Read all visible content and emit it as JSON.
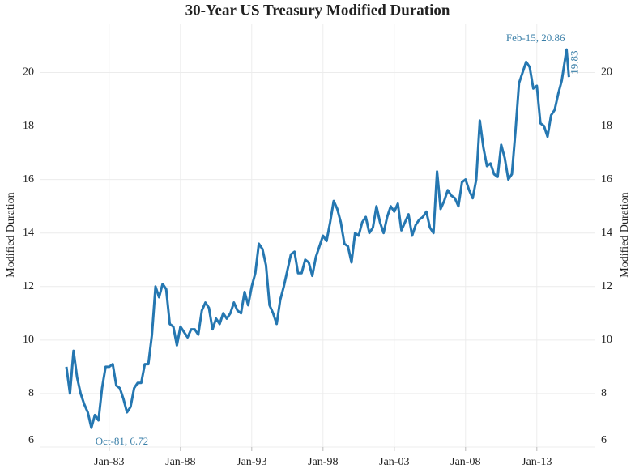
{
  "chart_data": {
    "type": "line",
    "title": "30-Year US Treasury Modified Duration",
    "y_label": "Modified Duration",
    "x": [
      "Jan-80",
      "Apr-80",
      "Jul-80",
      "Oct-80",
      "Jan-81",
      "Apr-81",
      "Jul-81",
      "Oct-81",
      "Jan-82",
      "Apr-82",
      "Jul-82",
      "Oct-82",
      "Jan-83",
      "Apr-83",
      "Jul-83",
      "Oct-83",
      "Jan-84",
      "Apr-84",
      "Jul-84",
      "Oct-84",
      "Jan-85",
      "Apr-85",
      "Jul-85",
      "Oct-85",
      "Jan-86",
      "Apr-86",
      "Jul-86",
      "Oct-86",
      "Jan-87",
      "Apr-87",
      "Jul-87",
      "Oct-87",
      "Jan-88",
      "Apr-88",
      "Jul-88",
      "Oct-88",
      "Jan-89",
      "Apr-89",
      "Jul-89",
      "Oct-89",
      "Jan-90",
      "Apr-90",
      "Jul-90",
      "Oct-90",
      "Jan-91",
      "Apr-91",
      "Jul-91",
      "Oct-91",
      "Jan-92",
      "Apr-92",
      "Jul-92",
      "Oct-92",
      "Jan-93",
      "Apr-93",
      "Jul-93",
      "Oct-93",
      "Jan-94",
      "Apr-94",
      "Jul-94",
      "Oct-94",
      "Jan-95",
      "Apr-95",
      "Jul-95",
      "Oct-95",
      "Jan-96",
      "Apr-96",
      "Jul-96",
      "Oct-96",
      "Jan-97",
      "Apr-97",
      "Jul-97",
      "Oct-97",
      "Jan-98",
      "Apr-98",
      "Jul-98",
      "Oct-98",
      "Jan-99",
      "Apr-99",
      "Jul-99",
      "Oct-99",
      "Jan-00",
      "Apr-00",
      "Jul-00",
      "Oct-00",
      "Jan-01",
      "Apr-01",
      "Jul-01",
      "Oct-01",
      "Jan-02",
      "Apr-02",
      "Jul-02",
      "Oct-02",
      "Jan-03",
      "Apr-03",
      "Jul-03",
      "Oct-03",
      "Jan-04",
      "Apr-04",
      "Jul-04",
      "Oct-04",
      "Jan-05",
      "Apr-05",
      "Jul-05",
      "Oct-05",
      "Jan-06",
      "Apr-06",
      "Jul-06",
      "Oct-06",
      "Jan-07",
      "Apr-07",
      "Jul-07",
      "Oct-07",
      "Jan-08",
      "Apr-08",
      "Jul-08",
      "Oct-08",
      "Jan-09",
      "Apr-09",
      "Jul-09",
      "Oct-09",
      "Jan-10",
      "Apr-10",
      "Jul-10",
      "Oct-10",
      "Jan-11",
      "Apr-11",
      "Jul-11",
      "Oct-11",
      "Jan-12",
      "Apr-12",
      "Jul-12",
      "Oct-12",
      "Jan-13",
      "Apr-13",
      "Jul-13",
      "Oct-13",
      "Jan-14",
      "Apr-14",
      "Jul-14",
      "Oct-14",
      "Feb-15",
      "Apr-15"
    ],
    "series": [
      {
        "name": "Modified Duration",
        "color": "#2577b1",
        "values": [
          9.0,
          8.0,
          9.6,
          8.6,
          8.0,
          7.6,
          7.3,
          6.72,
          7.2,
          7.0,
          8.2,
          9.0,
          9.0,
          9.1,
          8.3,
          8.2,
          7.8,
          7.3,
          7.5,
          8.2,
          8.4,
          8.4,
          9.1,
          9.1,
          10.2,
          12.0,
          11.6,
          12.1,
          11.9,
          10.6,
          10.5,
          9.8,
          10.5,
          10.3,
          10.1,
          10.4,
          10.4,
          10.2,
          11.1,
          11.4,
          11.2,
          10.4,
          10.8,
          10.6,
          11.0,
          10.8,
          11.0,
          11.4,
          11.1,
          11.0,
          11.8,
          11.3,
          12.0,
          12.5,
          13.6,
          13.4,
          12.8,
          11.3,
          11.0,
          10.6,
          11.5,
          12.0,
          12.6,
          13.2,
          13.3,
          12.5,
          12.5,
          13.0,
          12.9,
          12.4,
          13.1,
          13.5,
          13.9,
          13.7,
          14.4,
          15.2,
          14.9,
          14.4,
          13.6,
          13.5,
          12.9,
          14.0,
          13.9,
          14.4,
          14.6,
          14.0,
          14.2,
          15.0,
          14.4,
          14.0,
          14.6,
          15.0,
          14.8,
          15.1,
          14.1,
          14.4,
          14.7,
          13.9,
          14.3,
          14.5,
          14.6,
          14.8,
          14.2,
          14.0,
          16.3,
          14.9,
          15.2,
          15.6,
          15.4,
          15.3,
          15.0,
          15.9,
          16.0,
          15.6,
          15.3,
          16.0,
          18.2,
          17.2,
          16.5,
          16.6,
          16.2,
          16.1,
          17.3,
          16.8,
          16.0,
          16.2,
          17.8,
          19.6,
          20.0,
          20.4,
          20.2,
          19.4,
          19.5,
          18.1,
          18.0,
          17.6,
          18.4,
          18.6,
          19.2,
          19.7,
          20.86,
          19.83
        ]
      }
    ],
    "xticks": [
      "Jan-83",
      "Jan-88",
      "Jan-93",
      "Jan-98",
      "Jan-03",
      "Jan-08",
      "Jan-13"
    ],
    "ylim": [
      6,
      21.8
    ],
    "yticks": [
      6,
      8,
      10,
      12,
      14,
      16,
      18,
      20
    ],
    "grid": true,
    "annotations": [
      "Oct-81, 6.72",
      "Feb-15, 20.86",
      "19.83"
    ]
  }
}
